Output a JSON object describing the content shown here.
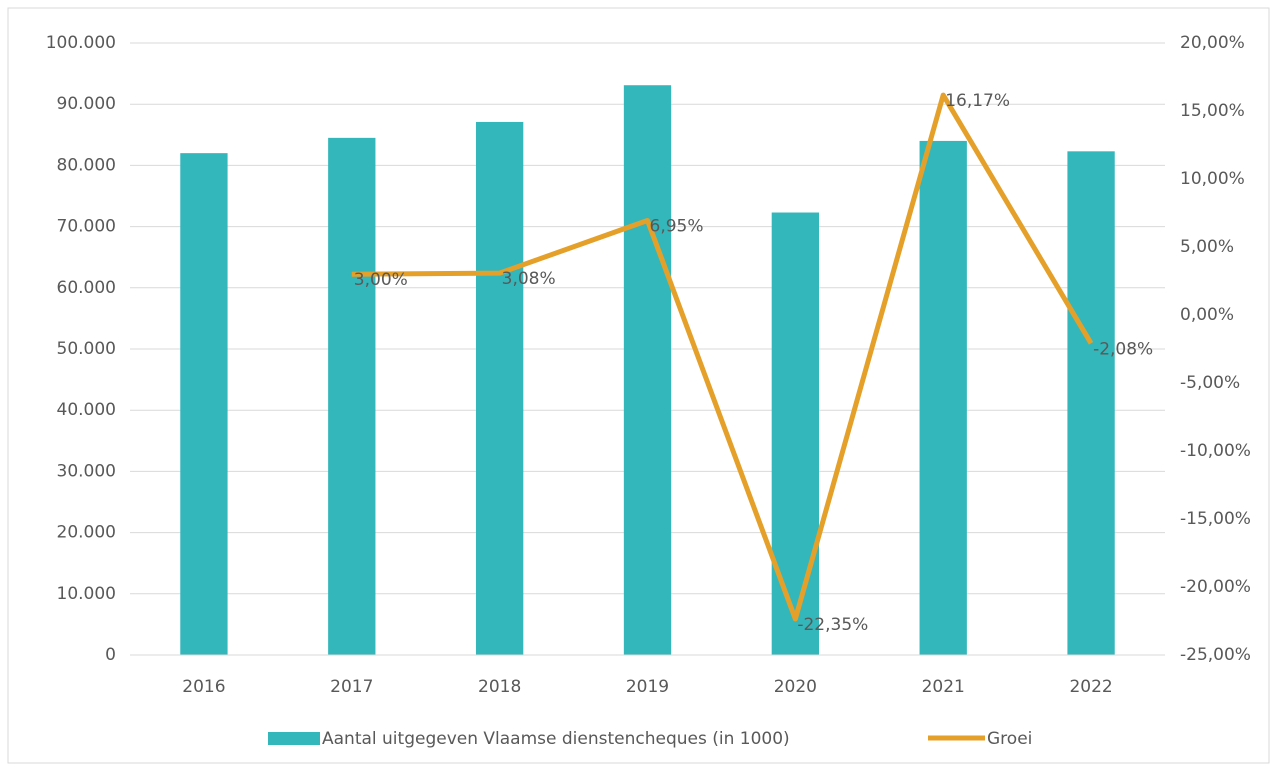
{
  "chart_data": {
    "type": "bar",
    "categories": [
      "2016",
      "2017",
      "2018",
      "2019",
      "2020",
      "2021",
      "2022"
    ],
    "series": [
      {
        "name": "Aantal uitgegeven Vlaamse dienstencheques (in 1000)",
        "type": "bar",
        "color": "#33b7bb",
        "values": [
          82000,
          84500,
          87100,
          93100,
          72300,
          84000,
          82300
        ]
      },
      {
        "name": "Groei",
        "type": "line",
        "axis": "y2",
        "color": "#e5a02a",
        "values": [
          null,
          3.0,
          3.08,
          6.95,
          -22.35,
          16.17,
          -2.08
        ],
        "value_labels": [
          null,
          "3,00%",
          "3,08%",
          "6,95%",
          "-22,35%",
          "16,17%",
          "-2,08%"
        ]
      }
    ],
    "ylim": [
      0,
      100000
    ],
    "yticks": [
      0,
      {
        "value": 10000,
        "label": "10.000"
      },
      {
        "value": 20000,
        "label": "20.000"
      },
      {
        "value": 30000,
        "label": "30.000"
      },
      {
        "value": 40000,
        "label": "40.000"
      },
      {
        "value": 50000,
        "label": "50.000"
      },
      {
        "value": 60000,
        "label": "60.000"
      },
      {
        "value": 70000,
        "label": "70.000"
      },
      {
        "value": 80000,
        "label": "80.000"
      },
      {
        "value": 90000,
        "label": "90.000"
      },
      {
        "value": 100000,
        "label": "100.000"
      }
    ],
    "y2lim": [
      -25,
      20
    ],
    "y2ticks": [
      {
        "value": -25,
        "label": "-25,00%"
      },
      {
        "value": -20,
        "label": "-20,00%"
      },
      {
        "value": -15,
        "label": "-15,00%"
      },
      {
        "value": -10,
        "label": "-10,00%"
      },
      {
        "value": -5,
        "label": "-5,00%"
      },
      {
        "value": 0,
        "label": "0,00%"
      },
      {
        "value": 5,
        "label": "5,00%"
      },
      {
        "value": 10,
        "label": "10,00%"
      },
      {
        "value": 15,
        "label": "15,00%"
      },
      {
        "value": 20,
        "label": "20,00%"
      }
    ],
    "grid": true,
    "legend": "bottom"
  }
}
